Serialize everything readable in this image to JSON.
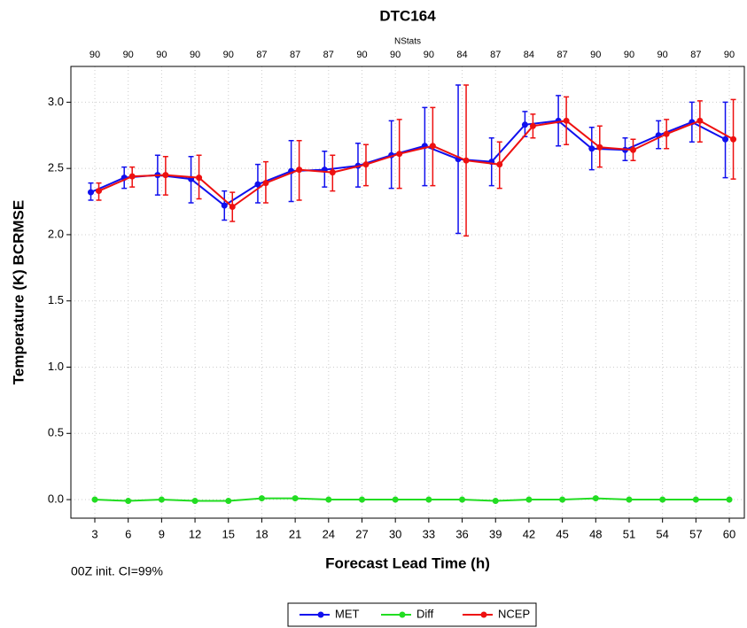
{
  "chart_data": {
    "type": "line",
    "title": "DTC164",
    "top_axis_label": "NStats",
    "nstats": [
      90,
      90,
      90,
      90,
      90,
      87,
      87,
      87,
      90,
      90,
      90,
      84,
      87,
      84,
      87,
      90,
      90,
      90,
      87,
      90
    ],
    "x_label": "Forecast Lead Time (h)",
    "y_label": "Temperature (K) BCRMSE",
    "annotation": "00Z init.  CI=99%",
    "x": [
      3,
      6,
      9,
      12,
      15,
      18,
      21,
      24,
      27,
      30,
      33,
      36,
      39,
      42,
      45,
      48,
      51,
      54,
      57,
      60
    ],
    "xlim": [
      0.85,
      61.35
    ],
    "xticks": [
      3,
      6,
      9,
      12,
      15,
      18,
      21,
      24,
      27,
      30,
      33,
      36,
      39,
      42,
      45,
      48,
      51,
      54,
      57,
      60
    ],
    "ylim": [
      -0.14,
      3.27
    ],
    "yticks": [
      {
        "value": 0,
        "label": "0.0"
      },
      {
        "value": 0.5,
        "label": "0.5"
      },
      {
        "value": 1,
        "label": "1.0"
      },
      {
        "value": 1.5,
        "label": "1.5"
      },
      {
        "value": 2,
        "label": "2.0"
      },
      {
        "value": 2.5,
        "label": "2.5"
      },
      {
        "value": 3,
        "label": "3.0"
      }
    ],
    "grid": true,
    "series": [
      {
        "name": "MET",
        "color": "#1010ee",
        "values": [
          2.32,
          2.43,
          2.45,
          2.42,
          2.22,
          2.38,
          2.48,
          2.49,
          2.52,
          2.6,
          2.67,
          2.57,
          2.55,
          2.83,
          2.86,
          2.65,
          2.64,
          2.75,
          2.85,
          2.72
        ],
        "ci_low": [
          2.26,
          2.35,
          2.3,
          2.24,
          2.11,
          2.24,
          2.25,
          2.36,
          2.36,
          2.35,
          2.37,
          2.01,
          2.37,
          2.74,
          2.67,
          2.49,
          2.56,
          2.65,
          2.7,
          2.43
        ],
        "ci_high": [
          2.39,
          2.51,
          2.6,
          2.59,
          2.33,
          2.53,
          2.71,
          2.63,
          2.69,
          2.86,
          2.96,
          3.13,
          2.73,
          2.93,
          3.05,
          2.81,
          2.73,
          2.86,
          3.0,
          3.0
        ]
      },
      {
        "name": "Diff",
        "color": "#22dd22",
        "values": [
          0.0,
          -0.01,
          0.0,
          -0.01,
          -0.01,
          0.01,
          0.01,
          0.0,
          0.0,
          0.0,
          0.0,
          0.0,
          -0.01,
          0.0,
          0.0,
          0.01,
          0.0,
          0.0,
          0.0,
          0.0
        ]
      },
      {
        "name": "NCEP",
        "color": "#ee1010",
        "values": [
          2.33,
          2.44,
          2.45,
          2.43,
          2.21,
          2.39,
          2.49,
          2.47,
          2.53,
          2.61,
          2.67,
          2.56,
          2.53,
          2.82,
          2.86,
          2.66,
          2.64,
          2.76,
          2.86,
          2.72
        ],
        "ci_low": [
          2.26,
          2.36,
          2.3,
          2.27,
          2.1,
          2.24,
          2.26,
          2.33,
          2.37,
          2.35,
          2.37,
          1.99,
          2.35,
          2.73,
          2.68,
          2.51,
          2.56,
          2.65,
          2.7,
          2.42
        ],
        "ci_high": [
          2.39,
          2.51,
          2.59,
          2.6,
          2.32,
          2.55,
          2.71,
          2.6,
          2.68,
          2.87,
          2.96,
          3.13,
          2.7,
          2.91,
          3.04,
          2.82,
          2.72,
          2.87,
          3.01,
          3.02
        ]
      }
    ]
  }
}
